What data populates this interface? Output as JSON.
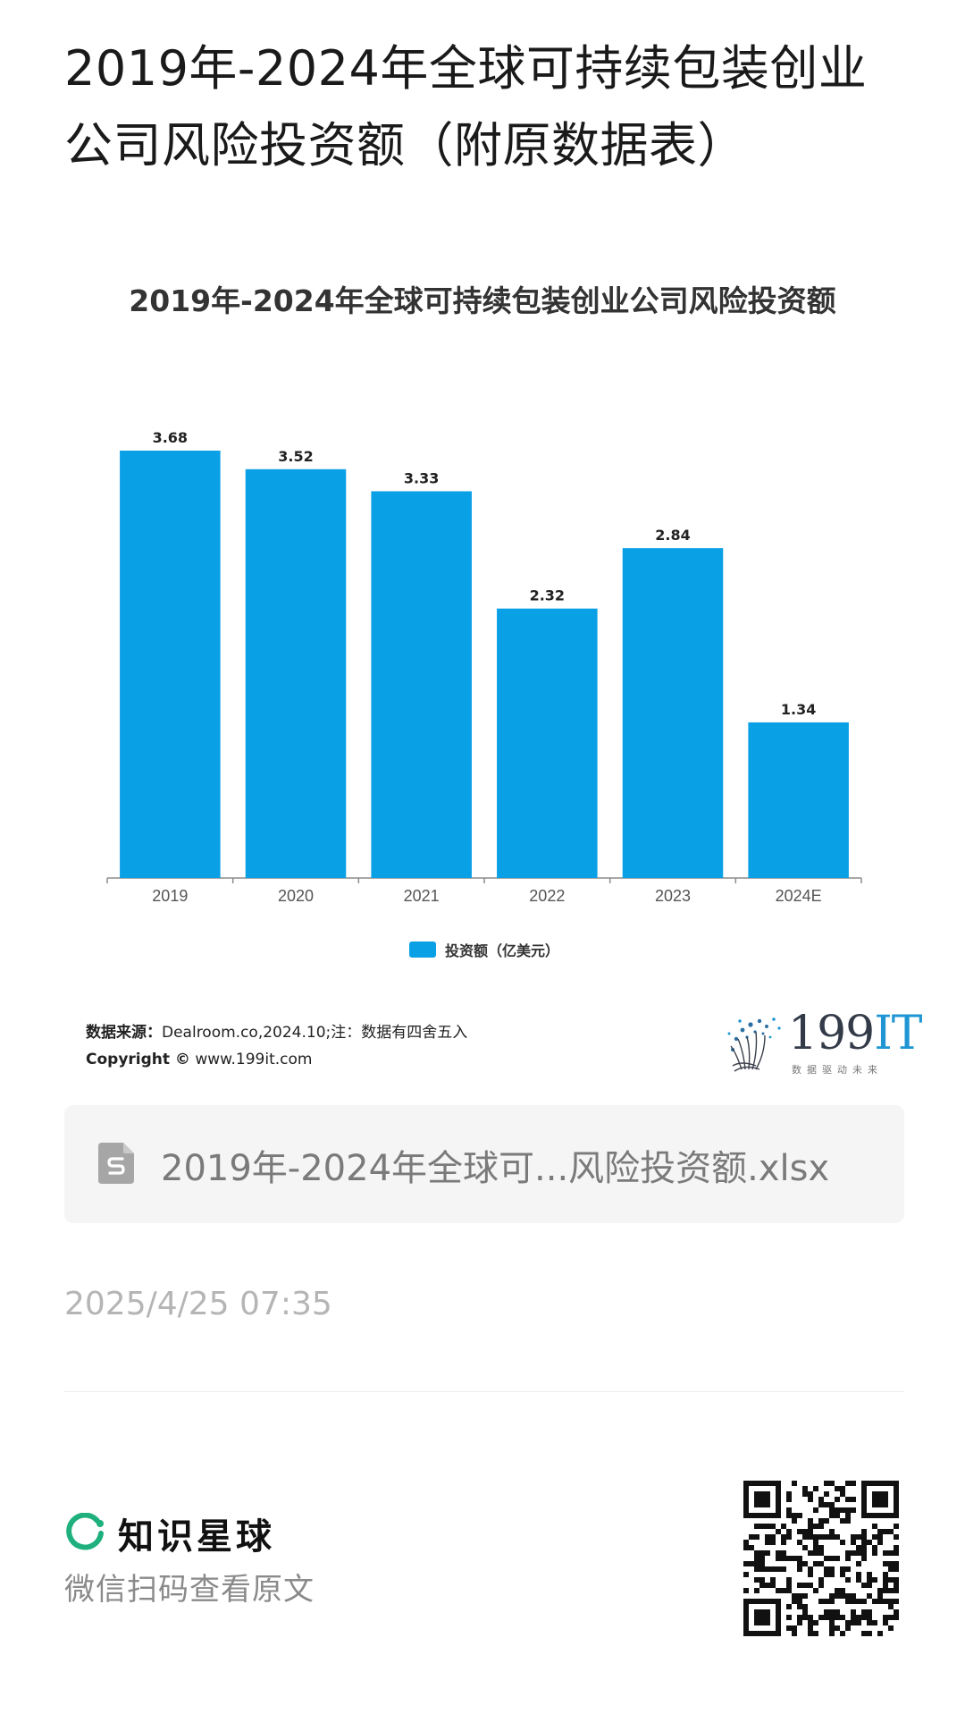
{
  "post": {
    "title": "2019年-2024年全球可持续包装创业公司风险投资额（附原数据表）"
  },
  "chart_data": {
    "type": "bar",
    "title": "2019年-2024年全球可持续包装创业公司风险投资额",
    "categories": [
      "2019",
      "2020",
      "2021",
      "2022",
      "2023",
      "2024E"
    ],
    "series": [
      {
        "name": "投资额（亿美元）",
        "values": [
          3.68,
          3.52,
          3.33,
          2.32,
          2.84,
          1.34
        ]
      }
    ],
    "data_labels": [
      "3.68",
      "3.52",
      "3.33",
      "2.32",
      "2.84",
      "1.34"
    ],
    "ylim": [
      0,
      3.68
    ],
    "bar_color": "#0aa0e6",
    "legend_position": "bottom",
    "grid": false
  },
  "source": {
    "key": "数据来源：",
    "text": "Dealroom.co,2024.10;注：数据有四舍五入",
    "copyright_key": "Copyright ©",
    "copyright_text": "www.199it.com"
  },
  "brand": {
    "name_num": "199",
    "name_it": "IT",
    "slogan": "数据驱动未来"
  },
  "attachment": {
    "icon": "spreadsheet-file-icon",
    "file_name": "2019年-2024年全球可...风险投资额.xlsx"
  },
  "meta": {
    "timestamp": "2025/4/25 07:35"
  },
  "footer": {
    "logo_icon": "planet-ring-icon",
    "logo_color": "#1fb07e",
    "planet_name": "知识星球",
    "scan_hint": "微信扫码查看原文",
    "qr_icon": "qr-code-icon"
  }
}
